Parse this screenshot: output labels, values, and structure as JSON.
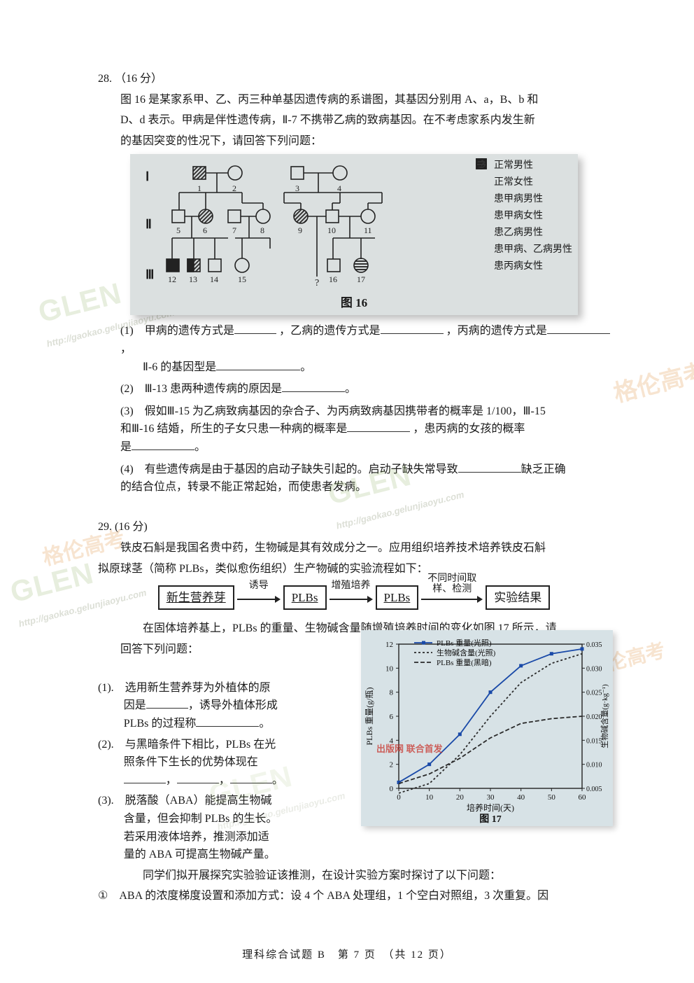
{
  "q28": {
    "number": "28.",
    "points": "（16 分）",
    "intro_l1": "图 16 是某家系甲、乙、丙三种单基因遗传病的系谱图，其基因分别用 A、a，B、b 和",
    "intro_l2": "D、d 表示。甲病是伴性遗传病，Ⅱ-7 不携带乙病的致病基因。在不考虑家系内发生新",
    "intro_l3": "的基因突变的性况下，请回答下列问题：",
    "legend": {
      "normal_m": "正常男性",
      "normal_f": "正常女性",
      "a_m": "患甲病男性",
      "a_f": "患甲病女性",
      "b_m": "患乙病男性",
      "ab_m": "患甲病、乙病男性",
      "c_f": "患丙病女性"
    },
    "fig_caption": "图 16",
    "gen_labels": {
      "I": "Ⅰ",
      "II": "Ⅱ",
      "III": "Ⅲ"
    },
    "ped_nums": [
      "1",
      "2",
      "3",
      "4",
      "5",
      "6",
      "7",
      "8",
      "9",
      "10",
      "11",
      "12",
      "13",
      "14",
      "15",
      "16",
      "17"
    ],
    "sub1_a": "(1)　甲病的遗传方式是",
    "sub1_b": "，乙病的遗传方式是",
    "sub1_c": "，丙病的遗传方式是",
    "sub1_d": "，",
    "sub1_e": "Ⅱ-6 的基因型是",
    "sub1_f": "。",
    "sub2_a": "(2)　Ⅲ-13 患两种遗传病的原因是",
    "sub2_b": "。",
    "sub3_a": "(3)　假如Ⅲ-15 为乙病致病基因的杂合子、为丙病致病基因携带者的概率是 1/100，Ⅲ-15",
    "sub3_b": "和Ⅲ-16 结婚，所生的子女只患一种病的概率是",
    "sub3_c": "，患丙病的女孩的概率",
    "sub3_d": "是",
    "sub3_e": "。",
    "sub4_a": "(4)　有些遗传病是由于基因的启动子缺失引起的。启动子缺失常导致",
    "sub4_b": "缺乏正确",
    "sub4_c": "的结合位点，转录不能正常起始，而使患者发病。"
  },
  "q29": {
    "number": "29.",
    "points": "(16 分)",
    "intro_l1": "铁皮石斛是我国名贵中药，生物碱是其有效成分之一。应用组织培养技术培养铁皮石斛",
    "intro_l2": "拟原球茎（简称 PLBs，类似愈伤组织）生产物碱的实验流程如下：",
    "flow": {
      "b1": "新生营养芽",
      "a1": "诱导",
      "b2": "PLBs",
      "a2": "增殖培养",
      "b3": "PLBs",
      "a3_l1": "不同时间取",
      "a3_l2": "样、检测",
      "b4": "实验结果"
    },
    "mid_l1": "在固体培养基上，PLBs 的重量、生物碱含量随增殖培养时间的变化如图 17 所示，请",
    "mid_l2": "回答下列问题：",
    "sub1_a": "(1).　选用新生营养芽为外植体的原",
    "sub1_b": "因是",
    "sub1_c": "，诱导外植体形成",
    "sub1_d": "PLBs 的过程称",
    "sub1_e": "。",
    "sub2_a": "(2).　与黑暗条件下相比，PLBs 在光",
    "sub2_b": "照条件下生长的优势体现在",
    "sub2_c": "，",
    "sub2_d": "，",
    "sub2_e": "。",
    "sub3_a": "(3).　脱落酸（ABA）能提高生物碱",
    "sub3_b": "含量，但会抑制 PLBs 的生长。",
    "sub3_c": "若采用液体培养，推测添加适",
    "sub3_d": "量的 ABA 可提高生物碱产量。",
    "after_l1": "同学们拟开展探究实验验证该推测，在设计实验方案时探讨了以下问题：",
    "circ1": "①　ABA 的浓度梯度设置和添加方式：设 4 个 ABA 处理组，1 个空白对照组，3 次重复。因"
  },
  "fig17": {
    "caption": "图 17",
    "xlabel": "培养时间(天)",
    "y1label": "PLBs 重量(g/瓶)",
    "y2label": "生物碱含量(g·kg⁻¹)",
    "legend_items": [
      "PLBs 重量(光照)",
      "生物碱含量(光照)",
      "PLBs 重量(黑暗)"
    ],
    "xticks": [
      0,
      10,
      20,
      30,
      40,
      50,
      60
    ],
    "y1ticks": [
      0,
      2,
      4,
      6,
      8,
      10,
      12
    ],
    "y2ticks": [
      0.005,
      0.01,
      0.015,
      0.02,
      0.025,
      0.03,
      0.035
    ],
    "colors": {
      "axis": "#222222",
      "s1": "#1a4aa8",
      "s2": "#2a2a2a",
      "s3": "#2a2a2a",
      "grid": "#aabcc4",
      "bg": "#d7e2e6"
    },
    "series": {
      "plbs_light": {
        "x": [
          0,
          10,
          20,
          30,
          40,
          50,
          60
        ],
        "y": [
          0.5,
          2.0,
          4.5,
          8.0,
          10.2,
          11.2,
          11.6
        ]
      },
      "alk_light": {
        "x": [
          0,
          10,
          20,
          30,
          40,
          50,
          60
        ],
        "y": [
          0.004,
          0.006,
          0.012,
          0.02,
          0.027,
          0.031,
          0.033
        ]
      },
      "plbs_dark": {
        "x": [
          0,
          10,
          20,
          30,
          40,
          50,
          60
        ],
        "y": [
          0.4,
          1.2,
          2.5,
          4.2,
          5.4,
          5.8,
          6.0
        ]
      }
    }
  },
  "footer": "理科综合试题 B　第 7 页　（共 12 页）",
  "watermarks": {
    "glen": "GLEN",
    "url": "http://gaokao.gelunjiaoyu.com",
    "cn": "格伦高考",
    "red": "出版网 联合首发"
  }
}
